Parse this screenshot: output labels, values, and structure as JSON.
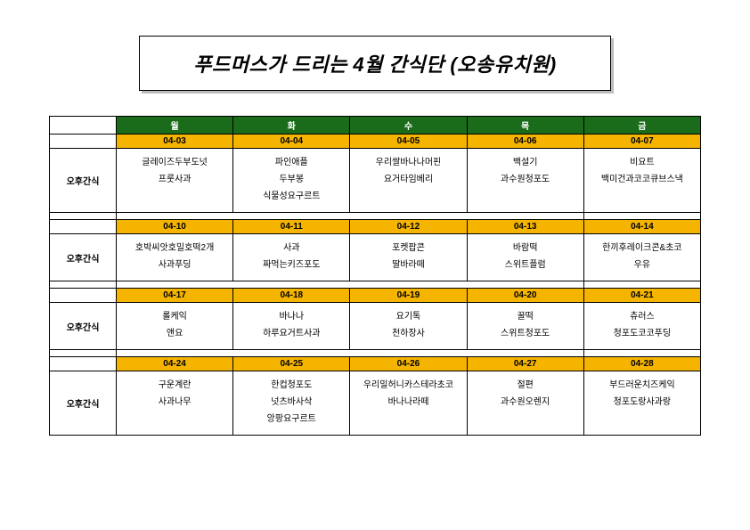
{
  "title": "푸드머스가 드리는 4월 간식단 (오송유치원)",
  "days": [
    "월",
    "화",
    "수",
    "목",
    "금"
  ],
  "rowLabel": "오후간식",
  "colors": {
    "header_bg": "#1a6b1a",
    "header_fg": "#ffffff",
    "date_bg": "#f4b400",
    "border": "#000000",
    "shadow": "#bdbdbd"
  },
  "weeks": [
    {
      "dates": [
        "04-03",
        "04-04",
        "04-05",
        "04-06",
        "04-07"
      ],
      "menus": [
        [
          "글레이즈두부도넛",
          "프룻사과"
        ],
        [
          "파인애플",
          "두부봉",
          "식물성요구르트"
        ],
        [
          "우리쌀바나나머핀",
          "요거타임베리"
        ],
        [
          "백설기",
          "과수원청포도"
        ],
        [
          "비요트",
          "백미건과코코큐브스낵"
        ]
      ]
    },
    {
      "dates": [
        "04-10",
        "04-11",
        "04-12",
        "04-13",
        "04-14"
      ],
      "menus": [
        [
          "호박씨앗호밀호떡2개",
          "사과푸딩"
        ],
        [
          "사과",
          "짜먹는키즈포도"
        ],
        [
          "포켓팝콘",
          "딸바라떼"
        ],
        [
          "바람떡",
          "스위트플럼"
        ],
        [
          "한끼후레이크콘&초코",
          "우유"
        ]
      ]
    },
    {
      "dates": [
        "04-17",
        "04-18",
        "04-19",
        "04-20",
        "04-21"
      ],
      "menus": [
        [
          "롤케익",
          "앤요"
        ],
        [
          "바나나",
          "하루요거트사과"
        ],
        [
          "요기톡",
          "천하장사"
        ],
        [
          "꿀떡",
          "스위트청포도"
        ],
        [
          "츄러스",
          "청포도코코푸딩"
        ]
      ]
    },
    {
      "dates": [
        "04-24",
        "04-25",
        "04-26",
        "04-27",
        "04-28"
      ],
      "menus": [
        [
          "구운계란",
          "사과나무"
        ],
        [
          "한컵청포도",
          "넛츠바사삭",
          "앙팡요구르트"
        ],
        [
          "우리밀허니카스테라초코",
          "바나나라떼"
        ],
        [
          "절편",
          "과수원오렌지"
        ],
        [
          "부드러운치즈케익",
          "청포도랑사과랑"
        ]
      ]
    }
  ]
}
